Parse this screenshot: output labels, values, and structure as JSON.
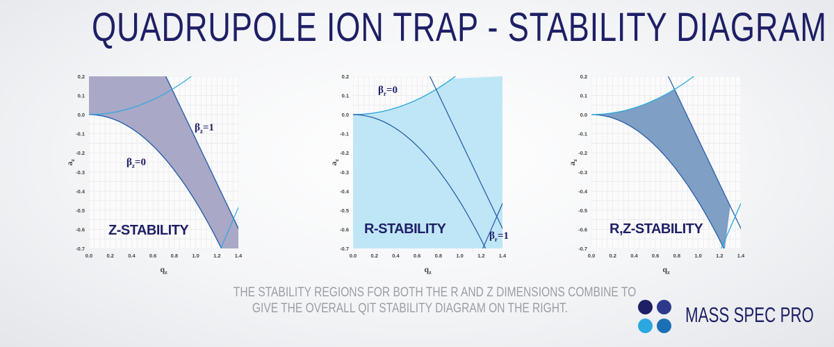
{
  "header": {
    "title": "QUADRUPOLE ION TRAP - STABILITY DIAGRAM"
  },
  "panels": [
    {
      "region_label": "Z-STABILITY",
      "xlabel": "q",
      "xlabel_sub": "z",
      "ylabel": "a",
      "ylabel_sub": "z",
      "x_ticks": [
        "0.0",
        "0.2",
        "0.4",
        "0.6",
        "0.8",
        "1.0",
        "1.2",
        "1.4"
      ],
      "y_ticks": [
        "0.2",
        "0.1",
        "0.0",
        "-0.1",
        "-0.2",
        "-0.3",
        "-0.4",
        "-0.5",
        "-0.6",
        "-0.7"
      ],
      "curve_labels": [
        {
          "greek": "β",
          "sub": "z",
          "value": "=0"
        },
        {
          "greek": "β",
          "sub": "z",
          "value": "=1"
        }
      ]
    },
    {
      "region_label": "R-STABILITY",
      "xlabel": "q",
      "xlabel_sub": "z",
      "ylabel": "a",
      "ylabel_sub": "z",
      "x_ticks": [
        "0.0",
        "0.2",
        "0.4",
        "0.6",
        "0.8",
        "1.0",
        "1.2",
        "1.4"
      ],
      "y_ticks": [
        "0.2",
        "0.1",
        "0.0",
        "-0.1",
        "-0.2",
        "-0.3",
        "-0.4",
        "-0.5",
        "-0.6",
        "-0.7"
      ],
      "curve_labels": [
        {
          "greek": "β",
          "sub": "r",
          "value": "=0"
        },
        {
          "greek": "β",
          "sub": "r",
          "value": "=1"
        }
      ]
    },
    {
      "region_label": "R,Z-STABILITY",
      "xlabel": "q",
      "xlabel_sub": "z",
      "ylabel": "a",
      "ylabel_sub": "z",
      "x_ticks": [
        "0.0",
        "0.2",
        "0.4",
        "0.6",
        "0.8",
        "1.0",
        "1.2",
        "1.4"
      ],
      "y_ticks": [
        "0.2",
        "0.1",
        "0.0",
        "-0.1",
        "-0.2",
        "-0.3",
        "-0.4",
        "-0.5",
        "-0.6",
        "-0.7"
      ],
      "curve_labels": []
    }
  ],
  "caption": {
    "line1": "THE STABILITY REGIONS FOR BOTH THE R AND Z DIMENSIONS COMBINE TO",
    "line2": "GIVE THE OVERALL QIT STABILITY DIAGRAM ON THE RIGHT."
  },
  "brand": {
    "name": "MASS SPEC PRO",
    "dot_colors": [
      "#1f1f66",
      "#2d3a8c",
      "#2aa8df",
      "#1b6fb5"
    ]
  },
  "colors": {
    "z_fill": "#a9a8c6",
    "r_fill": "#bfe6f6",
    "rz_fill": "#7f9fc4",
    "light_curve": "#29a9e0",
    "dark_curve": "#2a5faa",
    "text_navy": "#1f1f66"
  },
  "chart_data": [
    {
      "type": "area",
      "xlabel": "qz",
      "ylabel": "az",
      "xlim": [
        0.0,
        1.4
      ],
      "ylim": [
        -0.7,
        0.2
      ],
      "series": [
        {
          "name": "βz=0",
          "x": [
            0.0,
            0.2,
            0.4,
            0.6,
            0.8,
            1.0,
            1.2,
            1.25
          ],
          "y": [
            0.0,
            -0.02,
            -0.08,
            -0.18,
            -0.31,
            -0.46,
            -0.66,
            -0.7
          ]
        },
        {
          "name": "βz=1",
          "x": [
            0.72,
            0.9,
            1.1,
            1.3,
            1.4
          ],
          "y": [
            0.2,
            -0.05,
            -0.28,
            -0.5,
            -0.61
          ]
        }
      ]
    },
    {
      "type": "area",
      "xlabel": "qz",
      "ylabel": "az",
      "xlim": [
        0.0,
        1.4
      ],
      "ylim": [
        -0.7,
        0.2
      ],
      "series": [
        {
          "name": "βr=0",
          "x": [
            0.0,
            0.2,
            0.4,
            0.6,
            0.8,
            0.9
          ],
          "y": [
            0.0,
            0.01,
            0.04,
            0.08,
            0.15,
            0.2
          ]
        },
        {
          "name": "βr=1",
          "x": [
            0.72,
            0.9,
            1.1,
            1.3,
            1.4
          ],
          "y": [
            0.2,
            -0.02,
            -0.25,
            -0.48,
            -0.6
          ]
        }
      ]
    },
    {
      "type": "area",
      "xlabel": "qz",
      "ylabel": "az",
      "xlim": [
        0.0,
        1.4
      ],
      "ylim": [
        -0.7,
        0.2
      ],
      "series": [
        {
          "x": [
            0.0,
            0.4,
            0.78,
            1.0,
            1.2,
            1.25
          ],
          "y": [
            0.0,
            0.04,
            0.14,
            -0.1,
            -0.55,
            -0.7
          ]
        }
      ]
    }
  ]
}
